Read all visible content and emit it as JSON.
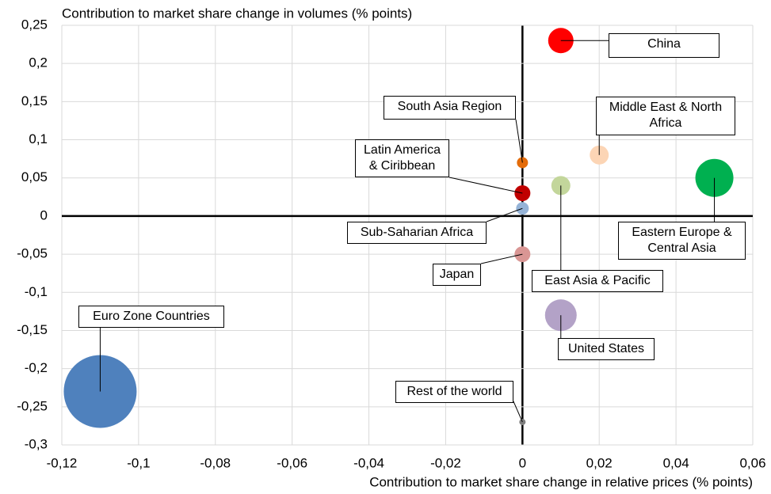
{
  "chart_data": {
    "type": "bubble",
    "y_label": "Contribution to market share change in volumes (% points)",
    "x_label": "Contribution to market share change in relative prices (% points)",
    "xlim": [
      -0.12,
      0.06
    ],
    "ylim": [
      -0.3,
      0.25
    ],
    "xticks": [
      {
        "value": -0.12,
        "label": "-0,12"
      },
      {
        "value": -0.1,
        "label": "-0,1"
      },
      {
        "value": -0.08,
        "label": "-0,08"
      },
      {
        "value": -0.06,
        "label": "-0,06"
      },
      {
        "value": -0.04,
        "label": "-0,04"
      },
      {
        "value": -0.02,
        "label": "-0,02"
      },
      0,
      {
        "value": 0.02,
        "label": "0,02"
      },
      {
        "value": 0.04,
        "label": "0,04"
      },
      {
        "value": 0.06,
        "label": "0,06"
      }
    ],
    "yticks": [
      {
        "value": -0.3,
        "label": "-0,3"
      },
      {
        "value": -0.25,
        "label": "-0,25"
      },
      {
        "value": -0.2,
        "label": "-0,2"
      },
      {
        "value": -0.15,
        "label": "-0,15"
      },
      {
        "value": -0.1,
        "label": "-0,1"
      },
      {
        "value": -0.05,
        "label": "-0,05"
      },
      0,
      {
        "value": 0.05,
        "label": "0,05"
      },
      {
        "value": 0.1,
        "label": "0,1"
      },
      {
        "value": 0.15,
        "label": "0,15"
      },
      {
        "value": 0.2,
        "label": "0,2"
      },
      {
        "value": 0.25,
        "label": "0,25"
      }
    ],
    "grid": true,
    "series": [
      {
        "name": "Euro Zone Countries",
        "color": "#4f81bd",
        "x": [
          -0.11
        ],
        "values": [
          -0.23
        ],
        "sizes": [
          46
        ]
      },
      {
        "name": "Eastern Europe & Central Asia",
        "color": "#00b050",
        "x": [
          0.05
        ],
        "values": [
          0.05
        ],
        "sizes": [
          24
        ]
      },
      {
        "name": "United States",
        "color": "#b3a2c7",
        "x": [
          0.01
        ],
        "values": [
          -0.13
        ],
        "sizes": [
          20
        ]
      },
      {
        "name": "China",
        "color": "#ff0000",
        "x": [
          0.01
        ],
        "values": [
          0.23
        ],
        "sizes": [
          16
        ]
      },
      {
        "name": "Middle East & North Africa",
        "color": "#fcd5b5",
        "x": [
          0.02
        ],
        "values": [
          0.08
        ],
        "sizes": [
          12
        ]
      },
      {
        "name": "East Asia & Pacific",
        "color": "#c3d69b",
        "x": [
          0.01
        ],
        "values": [
          0.04
        ],
        "sizes": [
          12
        ]
      },
      {
        "name": "Latin America & Ciribbean",
        "color": "#c00000",
        "x": [
          0
        ],
        "values": [
          0.03
        ],
        "sizes": [
          10
        ]
      },
      {
        "name": "Japan",
        "color": "#d99694",
        "x": [
          0
        ],
        "values": [
          -0.05
        ],
        "sizes": [
          10
        ]
      },
      {
        "name": "Sub-Saharian Africa",
        "color": "#95b3d7",
        "x": [
          0
        ],
        "values": [
          0.01
        ],
        "sizes": [
          8
        ]
      },
      {
        "name": "South Asia Region",
        "color": "#e46c0a",
        "x": [
          0
        ],
        "values": [
          0.07
        ],
        "sizes": [
          7
        ]
      },
      {
        "name": "Rest of the world",
        "color": "#7f7f7f",
        "x": [
          0
        ],
        "values": [
          -0.27
        ],
        "sizes": [
          4
        ]
      }
    ]
  }
}
